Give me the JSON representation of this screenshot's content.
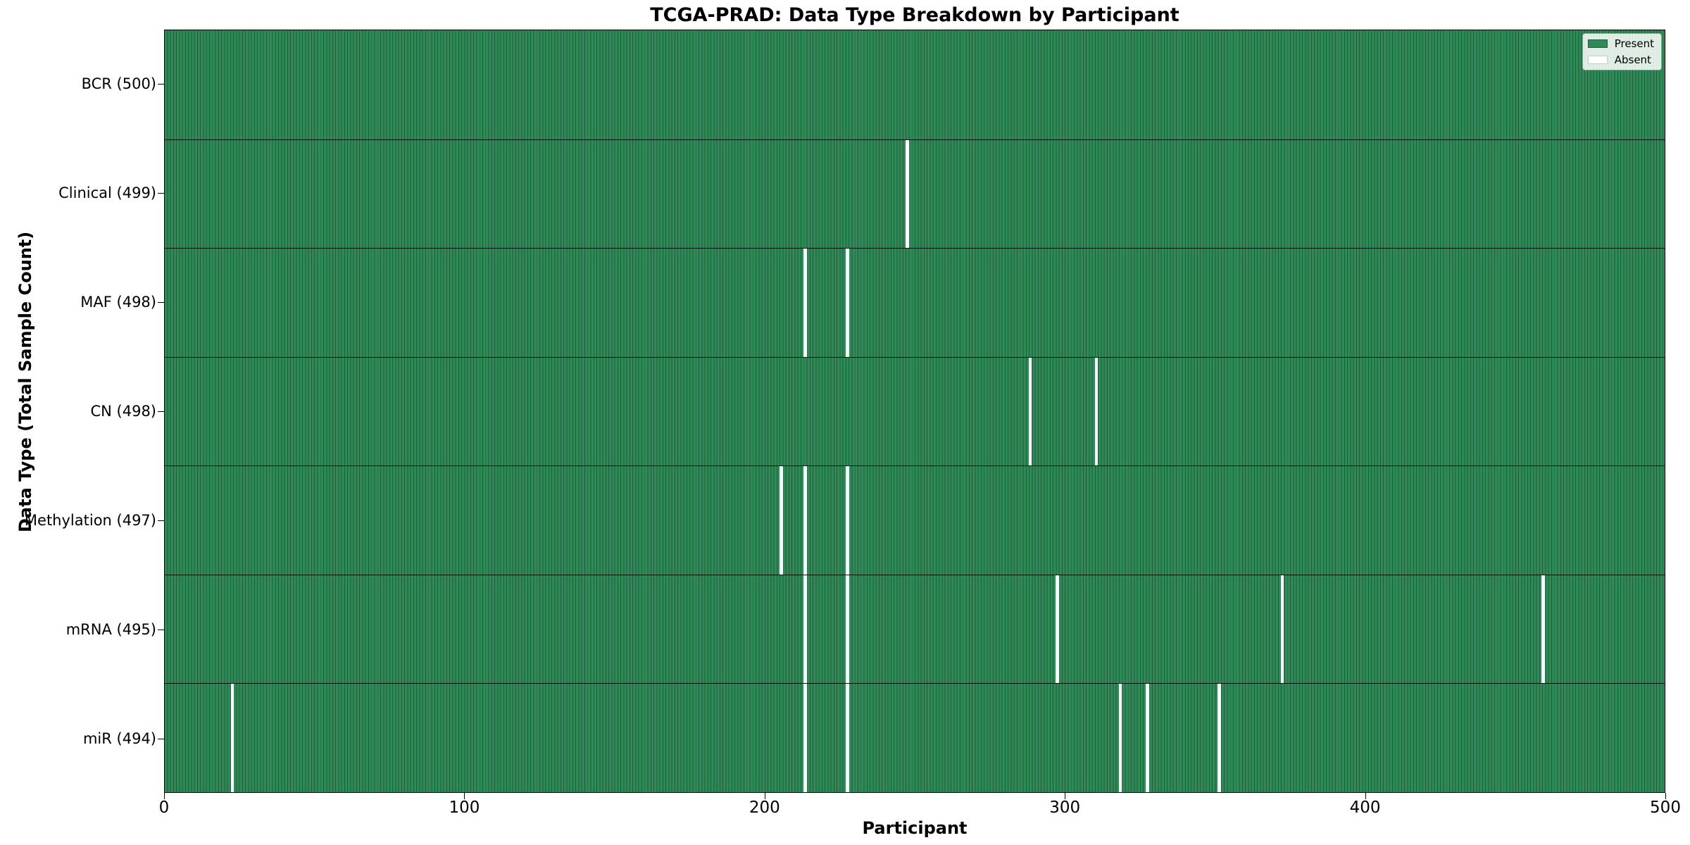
{
  "chart_data": {
    "type": "heatmap",
    "title": "TCGA-PRAD: Data Type Breakdown by Participant",
    "xlabel": "Participant",
    "ylabel": "Data Type (Total Sample Count)",
    "n_participants": 500,
    "x_range": [
      0,
      500
    ],
    "x_ticks": [
      "0",
      "100",
      "200",
      "300",
      "400",
      "500"
    ],
    "grid": false,
    "legend_position": "upper right",
    "rows": [
      {
        "label": "BCR (500)",
        "total": 500,
        "absent_participants": []
      },
      {
        "label": "Clinical (499)",
        "total": 499,
        "absent_participants": [
          247
        ]
      },
      {
        "label": "MAF (498)",
        "total": 498,
        "absent_participants": [
          213,
          227
        ]
      },
      {
        "label": "CN (498)",
        "total": 498,
        "absent_participants": [
          288,
          310
        ]
      },
      {
        "label": "Methylation (497)",
        "total": 497,
        "absent_participants": [
          205,
          213,
          227
        ]
      },
      {
        "label": "mRNA (495)",
        "total": 495,
        "absent_participants": [
          213,
          227,
          297,
          372,
          459
        ]
      },
      {
        "label": "miR (494)",
        "total": 494,
        "absent_participants": [
          22,
          213,
          227,
          318,
          327,
          351
        ]
      }
    ],
    "legend": {
      "entries": [
        {
          "label": "Present",
          "color": "#2f8a58",
          "edge": "#1f5e3b"
        },
        {
          "label": "Absent",
          "color": "#ffffff",
          "edge": "#cccccc"
        }
      ]
    },
    "colors": {
      "present": "#2f8a58",
      "cell_edge": "#1f5e3b",
      "absent": "#ffffff",
      "text": "#000000"
    }
  }
}
